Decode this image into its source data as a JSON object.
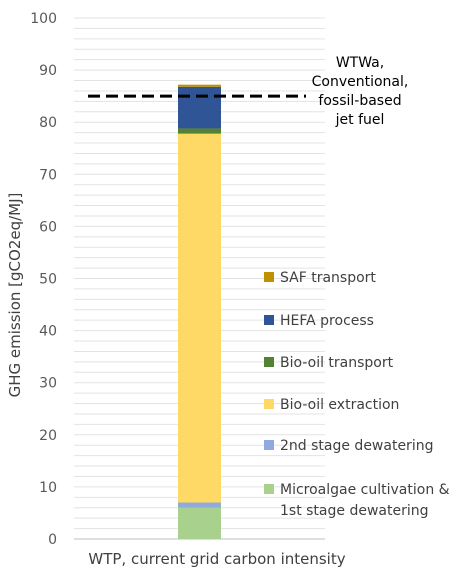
{
  "chart_data": {
    "type": "bar",
    "stacked": true,
    "categories": [
      "WTP, current grid carbon intensity"
    ],
    "ylabel": "GHG emission [gCO2eq/MJ]",
    "xlabel": "",
    "ylim": [
      0,
      100
    ],
    "yticks": [
      "0",
      "10",
      "20",
      "30",
      "40",
      "50",
      "60",
      "70",
      "80",
      "90",
      "100"
    ],
    "grid": true,
    "legend_position": "right",
    "series": [
      {
        "name": "Microalgae cultivation & 1st stage dewatering",
        "name_lines": [
          "Microalgae cultivation &",
          "1st stage dewatering"
        ],
        "values": [
          6.0
        ],
        "color": "#a9d18e"
      },
      {
        "name": "2nd stage dewatering",
        "name_lines": [
          "2nd stage dewatering"
        ],
        "values": [
          1.0
        ],
        "color": "#8faadc"
      },
      {
        "name": "Bio-oil extraction",
        "name_lines": [
          "Bio-oil extraction"
        ],
        "values": [
          70.8
        ],
        "color": "#ffd966"
      },
      {
        "name": "Bio-oil transport",
        "name_lines": [
          "Bio-oil transport"
        ],
        "values": [
          1.0
        ],
        "color": "#548235"
      },
      {
        "name": "HEFA process",
        "name_lines": [
          "HEFA process"
        ],
        "values": [
          8.0
        ],
        "color": "#2f5597"
      },
      {
        "name": "SAF transport",
        "name_lines": [
          "SAF transport"
        ],
        "values": [
          0.4
        ],
        "color": "#bf9000"
      }
    ],
    "reference_line": {
      "value": 85,
      "style": "dashed",
      "label_lines": [
        "WTWa,",
        "Conventional,",
        "fossil-based",
        "jet fuel"
      ]
    }
  }
}
